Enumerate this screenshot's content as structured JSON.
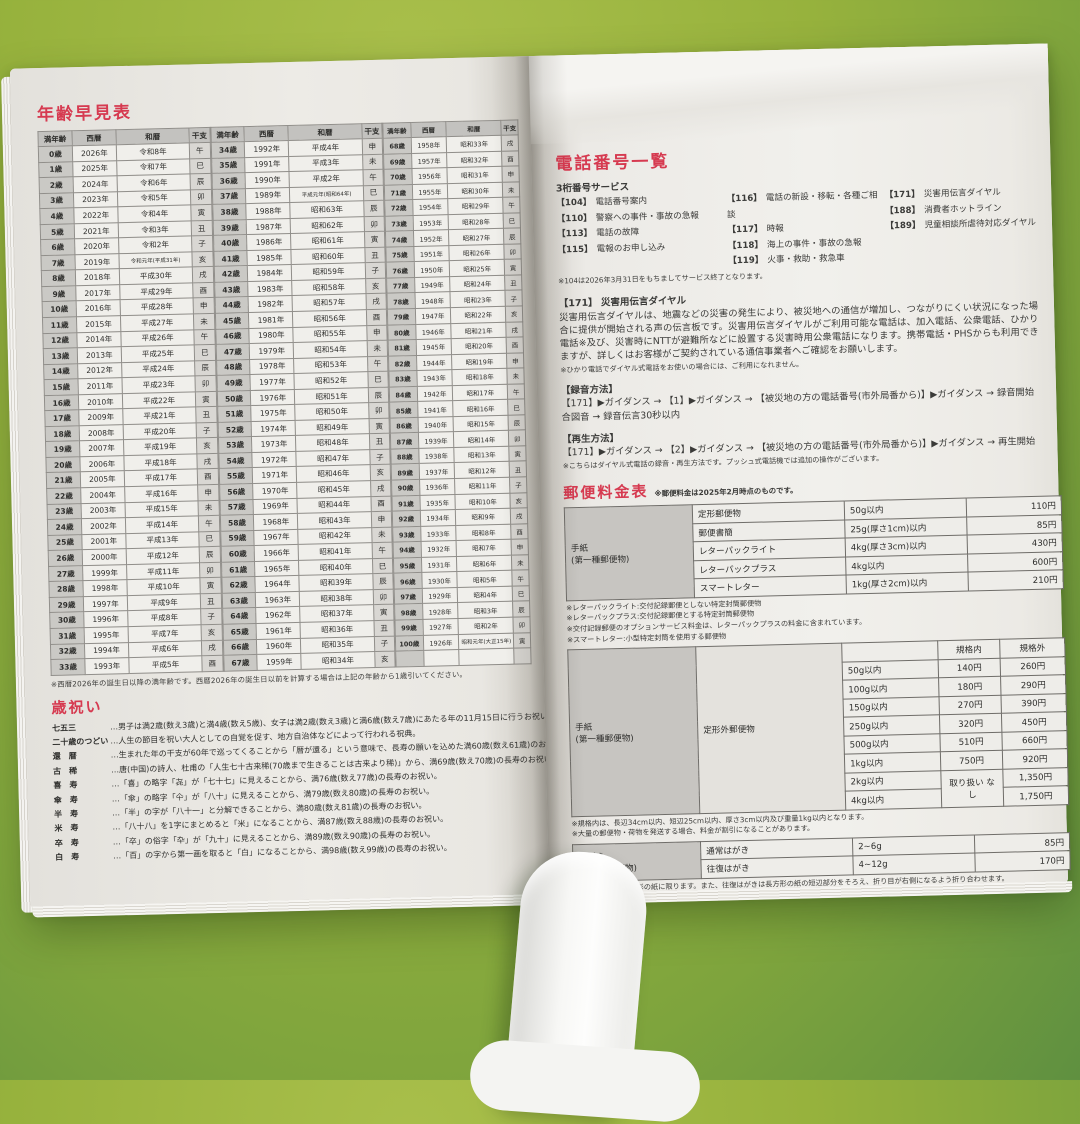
{
  "colors": {
    "accent_red": "#d63a50",
    "paper": "#eceae6",
    "background_green": "#97b23d",
    "table_header_gray": "#c3c2bf",
    "glove_white": "#f4f4f2"
  },
  "left_page": {
    "age_table": {
      "title": "年齢早見表",
      "headers": [
        "満年齢",
        "西暦",
        "和暦",
        "干支"
      ],
      "groups": [
        {
          "rows": [
            [
              "0歳",
              "2026年",
              "令和8年",
              "午"
            ],
            [
              "1歳",
              "2025年",
              "令和7年",
              "巳"
            ],
            [
              "2歳",
              "2024年",
              "令和6年",
              "辰"
            ],
            [
              "3歳",
              "2023年",
              "令和5年",
              "卯"
            ],
            [
              "4歳",
              "2022年",
              "令和4年",
              "寅"
            ],
            [
              "5歳",
              "2021年",
              "令和3年",
              "丑"
            ],
            [
              "6歳",
              "2020年",
              "令和2年",
              "子"
            ],
            [
              "7歳",
              "2019年",
              "令和元年(平成31年)",
              "亥"
            ],
            [
              "8歳",
              "2018年",
              "平成30年",
              "戌"
            ],
            [
              "9歳",
              "2017年",
              "平成29年",
              "酉"
            ],
            [
              "10歳",
              "2016年",
              "平成28年",
              "申"
            ],
            [
              "11歳",
              "2015年",
              "平成27年",
              "未"
            ],
            [
              "12歳",
              "2014年",
              "平成26年",
              "午"
            ],
            [
              "13歳",
              "2013年",
              "平成25年",
              "巳"
            ],
            [
              "14歳",
              "2012年",
              "平成24年",
              "辰"
            ],
            [
              "15歳",
              "2011年",
              "平成23年",
              "卯"
            ],
            [
              "16歳",
              "2010年",
              "平成22年",
              "寅"
            ],
            [
              "17歳",
              "2009年",
              "平成21年",
              "丑"
            ],
            [
              "18歳",
              "2008年",
              "平成20年",
              "子"
            ],
            [
              "19歳",
              "2007年",
              "平成19年",
              "亥"
            ],
            [
              "20歳",
              "2006年",
              "平成18年",
              "戌"
            ],
            [
              "21歳",
              "2005年",
              "平成17年",
              "酉"
            ],
            [
              "22歳",
              "2004年",
              "平成16年",
              "申"
            ],
            [
              "23歳",
              "2003年",
              "平成15年",
              "未"
            ],
            [
              "24歳",
              "2002年",
              "平成14年",
              "午"
            ],
            [
              "25歳",
              "2001年",
              "平成13年",
              "巳"
            ],
            [
              "26歳",
              "2000年",
              "平成12年",
              "辰"
            ],
            [
              "27歳",
              "1999年",
              "平成11年",
              "卯"
            ],
            [
              "28歳",
              "1998年",
              "平成10年",
              "寅"
            ],
            [
              "29歳",
              "1997年",
              "平成9年",
              "丑"
            ],
            [
              "30歳",
              "1996年",
              "平成8年",
              "子"
            ],
            [
              "31歳",
              "1995年",
              "平成7年",
              "亥"
            ],
            [
              "32歳",
              "1994年",
              "平成6年",
              "戌"
            ],
            [
              "33歳",
              "1993年",
              "平成5年",
              "酉"
            ]
          ]
        },
        {
          "rows": [
            [
              "34歳",
              "1992年",
              "平成4年",
              "申"
            ],
            [
              "35歳",
              "1991年",
              "平成3年",
              "未"
            ],
            [
              "36歳",
              "1990年",
              "平成2年",
              "午"
            ],
            [
              "37歳",
              "1989年",
              "平成元年(昭和64年)",
              "巳"
            ],
            [
              "38歳",
              "1988年",
              "昭和63年",
              "辰"
            ],
            [
              "39歳",
              "1987年",
              "昭和62年",
              "卯"
            ],
            [
              "40歳",
              "1986年",
              "昭和61年",
              "寅"
            ],
            [
              "41歳",
              "1985年",
              "昭和60年",
              "丑"
            ],
            [
              "42歳",
              "1984年",
              "昭和59年",
              "子"
            ],
            [
              "43歳",
              "1983年",
              "昭和58年",
              "亥"
            ],
            [
              "44歳",
              "1982年",
              "昭和57年",
              "戌"
            ],
            [
              "45歳",
              "1981年",
              "昭和56年",
              "酉"
            ],
            [
              "46歳",
              "1980年",
              "昭和55年",
              "申"
            ],
            [
              "47歳",
              "1979年",
              "昭和54年",
              "未"
            ],
            [
              "48歳",
              "1978年",
              "昭和53年",
              "午"
            ],
            [
              "49歳",
              "1977年",
              "昭和52年",
              "巳"
            ],
            [
              "50歳",
              "1976年",
              "昭和51年",
              "辰"
            ],
            [
              "51歳",
              "1975年",
              "昭和50年",
              "卯"
            ],
            [
              "52歳",
              "1974年",
              "昭和49年",
              "寅"
            ],
            [
              "53歳",
              "1973年",
              "昭和48年",
              "丑"
            ],
            [
              "54歳",
              "1972年",
              "昭和47年",
              "子"
            ],
            [
              "55歳",
              "1971年",
              "昭和46年",
              "亥"
            ],
            [
              "56歳",
              "1970年",
              "昭和45年",
              "戌"
            ],
            [
              "57歳",
              "1969年",
              "昭和44年",
              "酉"
            ],
            [
              "58歳",
              "1968年",
              "昭和43年",
              "申"
            ],
            [
              "59歳",
              "1967年",
              "昭和42年",
              "未"
            ],
            [
              "60歳",
              "1966年",
              "昭和41年",
              "午"
            ],
            [
              "61歳",
              "1965年",
              "昭和40年",
              "巳"
            ],
            [
              "62歳",
              "1964年",
              "昭和39年",
              "辰"
            ],
            [
              "63歳",
              "1963年",
              "昭和38年",
              "卯"
            ],
            [
              "64歳",
              "1962年",
              "昭和37年",
              "寅"
            ],
            [
              "65歳",
              "1961年",
              "昭和36年",
              "丑"
            ],
            [
              "66歳",
              "1960年",
              "昭和35年",
              "子"
            ],
            [
              "67歳",
              "1959年",
              "昭和34年",
              "亥"
            ]
          ]
        },
        {
          "rows": [
            [
              "68歳",
              "1958年",
              "昭和33年",
              "戌"
            ],
            [
              "69歳",
              "1957年",
              "昭和32年",
              "酉"
            ],
            [
              "70歳",
              "1956年",
              "昭和31年",
              "申"
            ],
            [
              "71歳",
              "1955年",
              "昭和30年",
              "未"
            ],
            [
              "72歳",
              "1954年",
              "昭和29年",
              "午"
            ],
            [
              "73歳",
              "1953年",
              "昭和28年",
              "巳"
            ],
            [
              "74歳",
              "1952年",
              "昭和27年",
              "辰"
            ],
            [
              "75歳",
              "1951年",
              "昭和26年",
              "卯"
            ],
            [
              "76歳",
              "1950年",
              "昭和25年",
              "寅"
            ],
            [
              "77歳",
              "1949年",
              "昭和24年",
              "丑"
            ],
            [
              "78歳",
              "1948年",
              "昭和23年",
              "子"
            ],
            [
              "79歳",
              "1947年",
              "昭和22年",
              "亥"
            ],
            [
              "80歳",
              "1946年",
              "昭和21年",
              "戌"
            ],
            [
              "81歳",
              "1945年",
              "昭和20年",
              "酉"
            ],
            [
              "82歳",
              "1944年",
              "昭和19年",
              "申"
            ],
            [
              "83歳",
              "1943年",
              "昭和18年",
              "未"
            ],
            [
              "84歳",
              "1942年",
              "昭和17年",
              "午"
            ],
            [
              "85歳",
              "1941年",
              "昭和16年",
              "巳"
            ],
            [
              "86歳",
              "1940年",
              "昭和15年",
              "辰"
            ],
            [
              "87歳",
              "1939年",
              "昭和14年",
              "卯"
            ],
            [
              "88歳",
              "1938年",
              "昭和13年",
              "寅"
            ],
            [
              "89歳",
              "1937年",
              "昭和12年",
              "丑"
            ],
            [
              "90歳",
              "1936年",
              "昭和11年",
              "子"
            ],
            [
              "91歳",
              "1935年",
              "昭和10年",
              "亥"
            ],
            [
              "92歳",
              "1934年",
              "昭和9年",
              "戌"
            ],
            [
              "93歳",
              "1933年",
              "昭和8年",
              "酉"
            ],
            [
              "94歳",
              "1932年",
              "昭和7年",
              "申"
            ],
            [
              "95歳",
              "1931年",
              "昭和6年",
              "未"
            ],
            [
              "96歳",
              "1930年",
              "昭和5年",
              "午"
            ],
            [
              "97歳",
              "1929年",
              "昭和4年",
              "巳"
            ],
            [
              "98歳",
              "1928年",
              "昭和3年",
              "辰"
            ],
            [
              "99歳",
              "1927年",
              "昭和2年",
              "卯"
            ],
            [
              "100歳",
              "1926年",
              "昭和元年(大正15年)",
              "寅"
            ],
            [
              "",
              "",
              "",
              ""
            ]
          ]
        }
      ],
      "note": "※西暦2026年の誕生日以降の満年齢です。西暦2026年の誕生日以前を計算する場合は上記の年齢から1歳引いてください。"
    },
    "celebrations": {
      "title": "歳祝い",
      "items": [
        {
          "label": "七五三",
          "text": "…男子は満2歳(数え3歳)と満4歳(数え5歳)、女子は満2歳(数え3歳)と満6歳(数え7歳)にあたる年の11月15日に行うお祝い。"
        },
        {
          "label": "二十歳のつどい",
          "text": "…人生の節目を祝い大人としての自覚を促す、地方自治体などによって行われる祝典。"
        },
        {
          "label": "還　暦",
          "text": "…生まれた年の干支が60年で巡ってくることから「暦が還る」という意味で、長寿の願いを込めた満60歳(数え61歳)のお祝い。"
        },
        {
          "label": "古　稀",
          "text": "…唐(中国)の詩人、杜甫の「人生七十古来稀(70歳まで生きることは古来より稀)」から、満69歳(数え70歳)の長寿のお祝い。"
        },
        {
          "label": "喜　寿",
          "text": "…「喜」の略字「㐂」が「七十七」に見えることから、満76歳(数え77歳)の長寿のお祝い。"
        },
        {
          "label": "傘　寿",
          "text": "…「傘」の略字「仐」が「八十」に見えることから、満79歳(数え80歳)の長寿のお祝い。"
        },
        {
          "label": "半　寿",
          "text": "…「半」の字が「八十一」と分解できることから、満80歳(数え81歳)の長寿のお祝い。"
        },
        {
          "label": "米　寿",
          "text": "…「八十八」を1字にまとめると「米」になることから、満87歳(数え88歳)の長寿のお祝い。"
        },
        {
          "label": "卒　寿",
          "text": "…「卒」の俗字「卆」が「九十」に見えることから、満89歳(数え90歳)の長寿のお祝い。"
        },
        {
          "label": "白　寿",
          "text": "…「百」の字から第一画を取ると「白」になることから、満98歳(数え99歳)の長寿のお祝い。"
        }
      ]
    }
  },
  "right_page": {
    "phone": {
      "title": "電話番号一覧",
      "subtitle": "3桁番号サービス",
      "columns": [
        [
          {
            "num": "【104】",
            "label": "電話番号案内"
          },
          {
            "num": "【110】",
            "label": "警察への事件・事故の急報"
          },
          {
            "num": "【113】",
            "label": "電話の故障"
          },
          {
            "num": "【115】",
            "label": "電報のお申し込み"
          }
        ],
        [
          {
            "num": "【116】",
            "label": "電話の新設・移転・各種ご相談"
          },
          {
            "num": "【117】",
            "label": "時報"
          },
          {
            "num": "【118】",
            "label": "海上の事件・事故の急報"
          },
          {
            "num": "【119】",
            "label": "火事・救助・救急車"
          }
        ],
        [
          {
            "num": "【171】",
            "label": "災害用伝言ダイヤル"
          },
          {
            "num": "【188】",
            "label": "消費者ホットライン"
          },
          {
            "num": "【189】",
            "label": "児童相談所虐待対応ダイヤル"
          }
        ]
      ],
      "service_end_note": "※104は2026年3月31日をもちましてサービス終了となります。",
      "disaster": {
        "heading": "【171】 災害用伝言ダイヤル",
        "body": "災害用伝言ダイヤルは、地震などの災害の発生により、被災地への通信が増加し、つながりにくい状況になった場合に提供が開始される声の伝言板です。災害用伝言ダイヤルがご利用可能な電話は、加入電話、公衆電話、ひかり電話※及び、災害時にNTTが避難所などに設置する災害時用公衆電話になります。携帯電話・PHSからも利用できますが、詳しくはお客様がご契約されている通信事業者へご確認をお願いします。",
        "hikari_note": "※ひかり電話でダイヤル式電話をお使いの場合には、ご利用になれません。",
        "record_heading": "【録音方法】",
        "record_line": "【171】▶ガイダンス → 【1】▶ガイダンス → 【被災地の方の電話番号(市外局番から)】▶ガイダンス → 録音開始",
        "record_line2": "合図音 → 録音伝言30秒以内",
        "play_heading": "【再生方法】",
        "play_line": "【171】▶ガイダンス → 【2】▶ガイダンス → 【被災地の方の電話番号(市外局番から)】▶ガイダンス → 再生開始",
        "dial_note": "※こちらはダイヤル式電話の録音・再生方法です。プッシュ式電話機では追加の操作がございます。"
      }
    },
    "postal": {
      "title": "郵便料金表",
      "title_note": "※郵便料金は2025年2月時点のものです。",
      "letter_table": {
        "category_lines": [
          "手紙",
          "(第一種郵便物)"
        ],
        "rows": [
          {
            "name": "定形郵便物",
            "limit": "50g以内",
            "price": "110円"
          },
          {
            "name": "郵便書簡",
            "limit": "25g(厚さ1cm)以内",
            "price": "85円"
          },
          {
            "name": "レターパックライト",
            "limit": "4kg(厚さ3cm)以内",
            "price": "430円"
          },
          {
            "name": "レターパックプラス",
            "limit": "4kg以内",
            "price": "600円"
          },
          {
            "name": "スマートレター",
            "limit": "1kg(厚さ2cm)以内",
            "price": "210円"
          }
        ],
        "notes": [
          "※レターパックライト:交付記録郵便としない特定封筒郵便物",
          "※レターパックプラス:交付記録郵便とする特定封筒郵便物",
          "※交付記録郵便のオプションサービス料金は、レターパックプラスの料金に含まれています。",
          "※スマートレター:小型特定封筒を使用する郵便物"
        ]
      },
      "oversize_table": {
        "category_lines": [
          "手紙",
          "(第一種郵便物)"
        ],
        "type_label": "定形外郵便物",
        "col_headers": [
          "規格内",
          "規格外"
        ],
        "rows": [
          {
            "limit": "50g以内",
            "in": "140円",
            "out": "260円"
          },
          {
            "limit": "100g以内",
            "in": "180円",
            "out": "290円"
          },
          {
            "limit": "150g以内",
            "in": "270円",
            "out": "390円"
          },
          {
            "limit": "250g以内",
            "in": "320円",
            "out": "450円"
          },
          {
            "limit": "500g以内",
            "in": "510円",
            "out": "660円"
          },
          {
            "limit": "1kg以内",
            "in": "750円",
            "out": "920円"
          },
          {
            "limit": "2kg以内",
            "in": "取り扱いなし",
            "out": "1,350円"
          },
          {
            "limit": "4kg以内",
            "in": "取り扱いなし",
            "out": "1,750円"
          }
        ],
        "merged_label": "取り扱い なし",
        "notes": [
          "※規格内は、長辺34cm以内、短辺25cm以内、厚さ3cm以内及び重量1kg以内となります。",
          "※大量の郵便物・荷物を発送する場合、料金が割引になることがあります。"
        ]
      },
      "postcard_table": {
        "category_lines": [
          "はがき",
          "(第二種郵便物)"
        ],
        "rows": [
          {
            "name": "通常はがき",
            "limit": "2~6g",
            "price": "85円"
          },
          {
            "name": "往復はがき",
            "limit": "4~12g",
            "price": "170円"
          }
        ],
        "notes": [
          "※通常はがきは長方形の紙に限ります。また、往復はがきは長方形の紙の短辺部分をそろえ、折り目が右側になるよう折り合わせます。",
          "※はがきは所定の規格内において私製することができますが、その規格を超えるものは第一種郵便物の扱いとなります。"
        ]
      }
    }
  }
}
